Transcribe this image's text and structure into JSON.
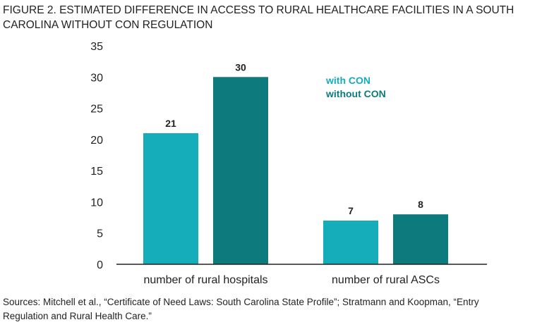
{
  "chart_data": {
    "type": "bar",
    "title": "FIGURE 2. ESTIMATED DIFFERENCE IN ACCESS TO RURAL HEALTHCARE FACILITIES IN A SOUTH CAROLINA WITHOUT CON REGULATION",
    "title_lines": [
      "FIGURE 2. ESTIMATED DIFFERENCE IN ACCESS TO RURAL HEALTHCARE FACILITIES IN A SOUTH",
      "CAROLINA WITHOUT CON REGULATION"
    ],
    "categories": [
      "number of rural hospitals",
      "number of rural ASCs"
    ],
    "series": [
      {
        "name": "with CON",
        "values": [
          21,
          7
        ],
        "color": "#14adb9"
      },
      {
        "name": "without CON",
        "values": [
          30,
          8
        ],
        "color": "#0d7a7e"
      }
    ],
    "ylim": [
      0,
      35
    ],
    "yticks": [
      0,
      5,
      10,
      15,
      20,
      25,
      30,
      35
    ],
    "grid": false,
    "legend_placement": "top-right",
    "xlabel": "",
    "ylabel": ""
  },
  "source_lines": [
    "Sources: Mitchell et al., “Certificate of Need Laws: South Carolina State Profile”; Stratmann and Koopman, “Entry",
    "Regulation and Rural Health Care.”"
  ]
}
